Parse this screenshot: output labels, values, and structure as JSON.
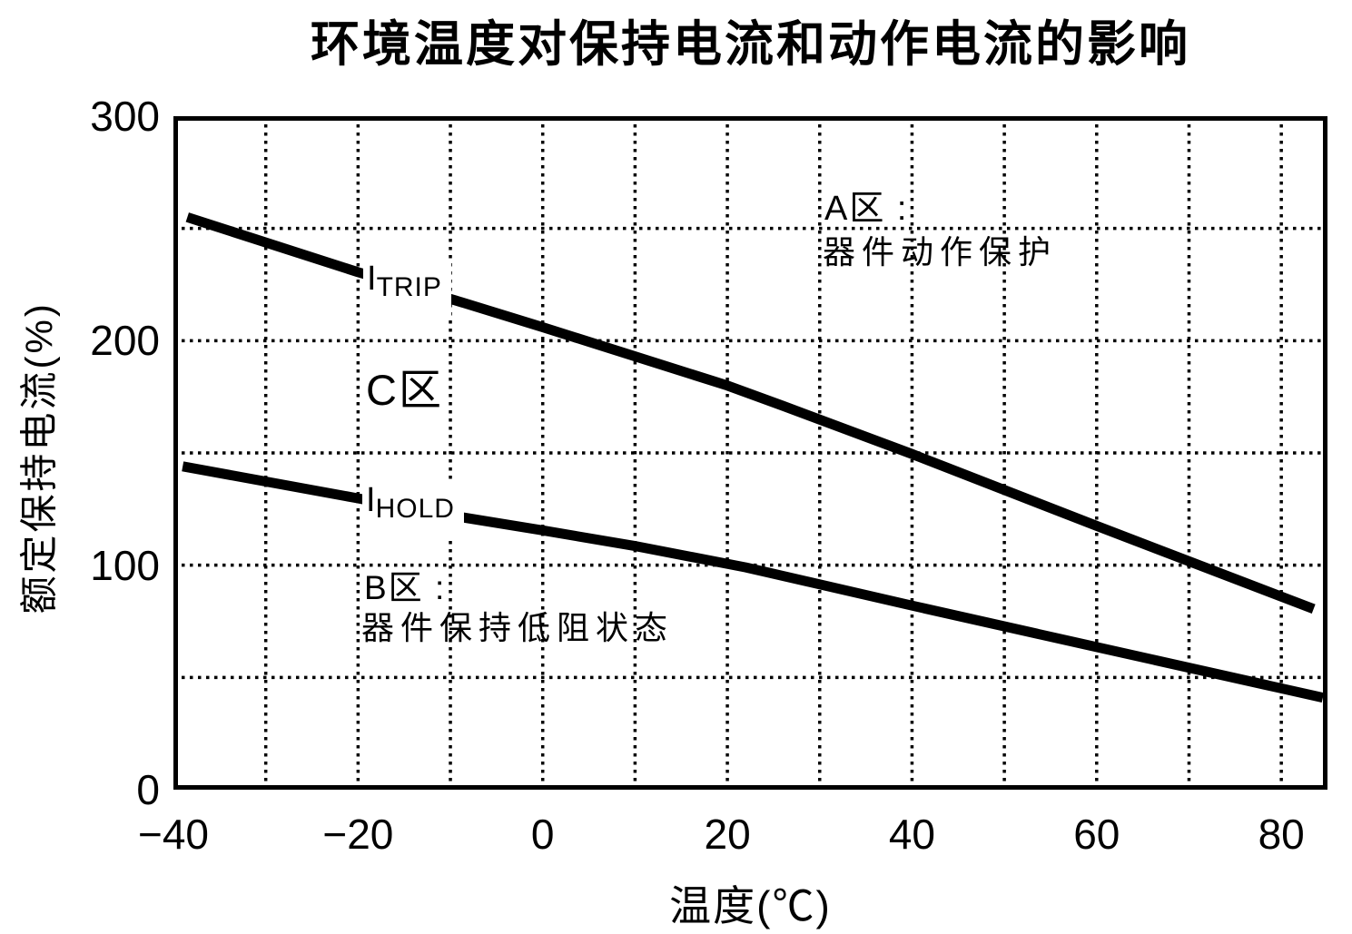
{
  "chart_data": {
    "type": "line",
    "title": "环境温度对保持电流和动作电流的影响",
    "xlabel": "温度(℃)",
    "ylabel": "额定保持电流(%)",
    "xlim": [
      -40,
      85
    ],
    "ylim": [
      0,
      300
    ],
    "grid": {
      "style": "dotted",
      "x_step": 10,
      "y_step": 50,
      "color": "#000000"
    },
    "line_color": "#000000",
    "background": "#ffffff",
    "legend_position": "inline-labels",
    "x_ticks": [
      {
        "v": -40,
        "label": "−40"
      },
      {
        "v": -20,
        "label": "−20"
      },
      {
        "v": 0,
        "label": "0"
      },
      {
        "v": 20,
        "label": "20"
      },
      {
        "v": 40,
        "label": "40"
      },
      {
        "v": 60,
        "label": "60"
      },
      {
        "v": 80,
        "label": "80"
      }
    ],
    "y_ticks": [
      {
        "v": 0,
        "label": "0"
      },
      {
        "v": 100,
        "label": "100"
      },
      {
        "v": 200,
        "label": "200"
      },
      {
        "v": 300,
        "label": "300"
      }
    ],
    "series": [
      {
        "name": "I_TRIP",
        "label_main": "I",
        "label_sub": "TRIP",
        "points": [
          [
            -38.5,
            255
          ],
          [
            -20,
            230.5
          ],
          [
            -9.5,
            218
          ],
          [
            0,
            206
          ],
          [
            10,
            193
          ],
          [
            20,
            180
          ],
          [
            26,
            171
          ],
          [
            40,
            149.5
          ],
          [
            60,
            117.5
          ],
          [
            83.5,
            80.5
          ]
        ]
      },
      {
        "name": "I_HOLD",
        "label_main": "I",
        "label_sub": "HOLD",
        "points": [
          [
            -39,
            144
          ],
          [
            -20.3,
            130
          ],
          [
            -10.5,
            122.5
          ],
          [
            0,
            115.5
          ],
          [
            10,
            108.5
          ],
          [
            22,
            99
          ],
          [
            40,
            82
          ],
          [
            60,
            63.5
          ],
          [
            84.5,
            41
          ]
        ]
      }
    ],
    "annotations": [
      {
        "name": "zone-a-title",
        "text": "A区 :"
      },
      {
        "name": "zone-a-desc",
        "text": "器件动作保护"
      },
      {
        "name": "zone-c-title",
        "text": "C区"
      },
      {
        "name": "zone-b-title",
        "text": "B区 :"
      },
      {
        "name": "zone-b-desc",
        "text": "器件保持低阻状态"
      }
    ]
  }
}
